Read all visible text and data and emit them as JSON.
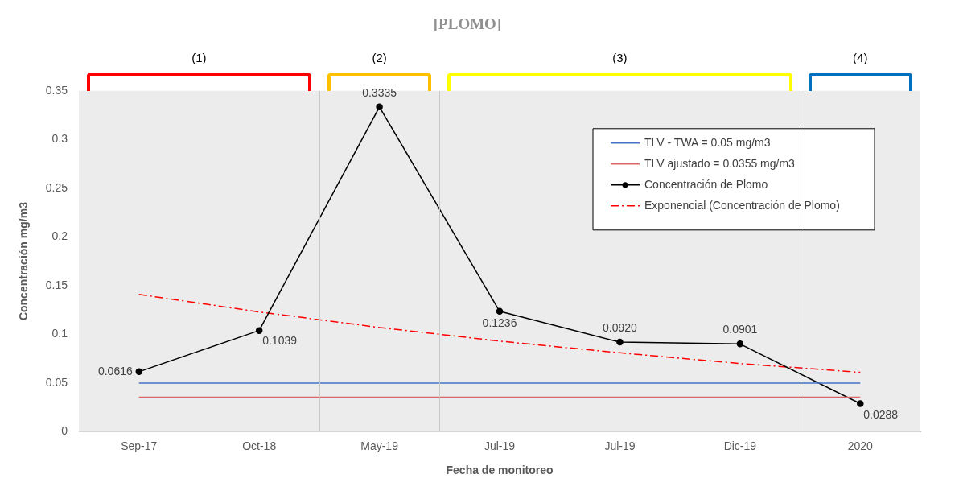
{
  "chart_data": {
    "type": "line",
    "title": "[PLOMO]",
    "xlabel": "Fecha de monitoreo",
    "ylabel": "Concentración mg/m3",
    "categories": [
      "Sep-17",
      "Oct-18",
      "May-19",
      "Jul-19",
      "Jul-19",
      "Dic-19",
      "2020"
    ],
    "series": [
      {
        "name": "TLV - TWA = 0.05 mg/m3",
        "color": "#4472c4",
        "values": [
          0.05,
          0.05,
          0.05,
          0.05,
          0.05,
          0.05,
          0.05
        ],
        "marker": "none",
        "line_style": "solid"
      },
      {
        "name": "TLV ajustado = 0.0355 mg/m3",
        "color": "#e06666",
        "values": [
          0.0355,
          0.0355,
          0.0355,
          0.0355,
          0.0355,
          0.0355,
          0.0355
        ],
        "marker": "none",
        "line_style": "solid"
      },
      {
        "name": "Concentración de Plomo",
        "color": "#000000",
        "values": [
          0.0616,
          0.1039,
          0.3335,
          0.1236,
          0.092,
          0.0901,
          0.0288
        ],
        "marker": "circle",
        "line_style": "solid",
        "value_labels": [
          "0.0616",
          "0.1039",
          "0.3335",
          "0.1236",
          "0.0920",
          "0.0901",
          "0.0288"
        ]
      },
      {
        "name": "Exponencial (Concentración de Plomo)",
        "color": "#ff0000",
        "values": [
          0.141,
          0.123,
          0.107,
          0.093,
          0.081,
          0.07,
          0.061
        ],
        "marker": "none",
        "line_style": "dashed"
      }
    ],
    "annotations": [
      "(1)",
      "(2)",
      "(3)",
      "(4)"
    ],
    "ylim": [
      0,
      0.35
    ],
    "yticks": [
      0,
      0.05,
      0.1,
      0.15,
      0.2,
      0.25,
      0.3,
      0.35
    ],
    "grid": false,
    "legend": "top right"
  }
}
